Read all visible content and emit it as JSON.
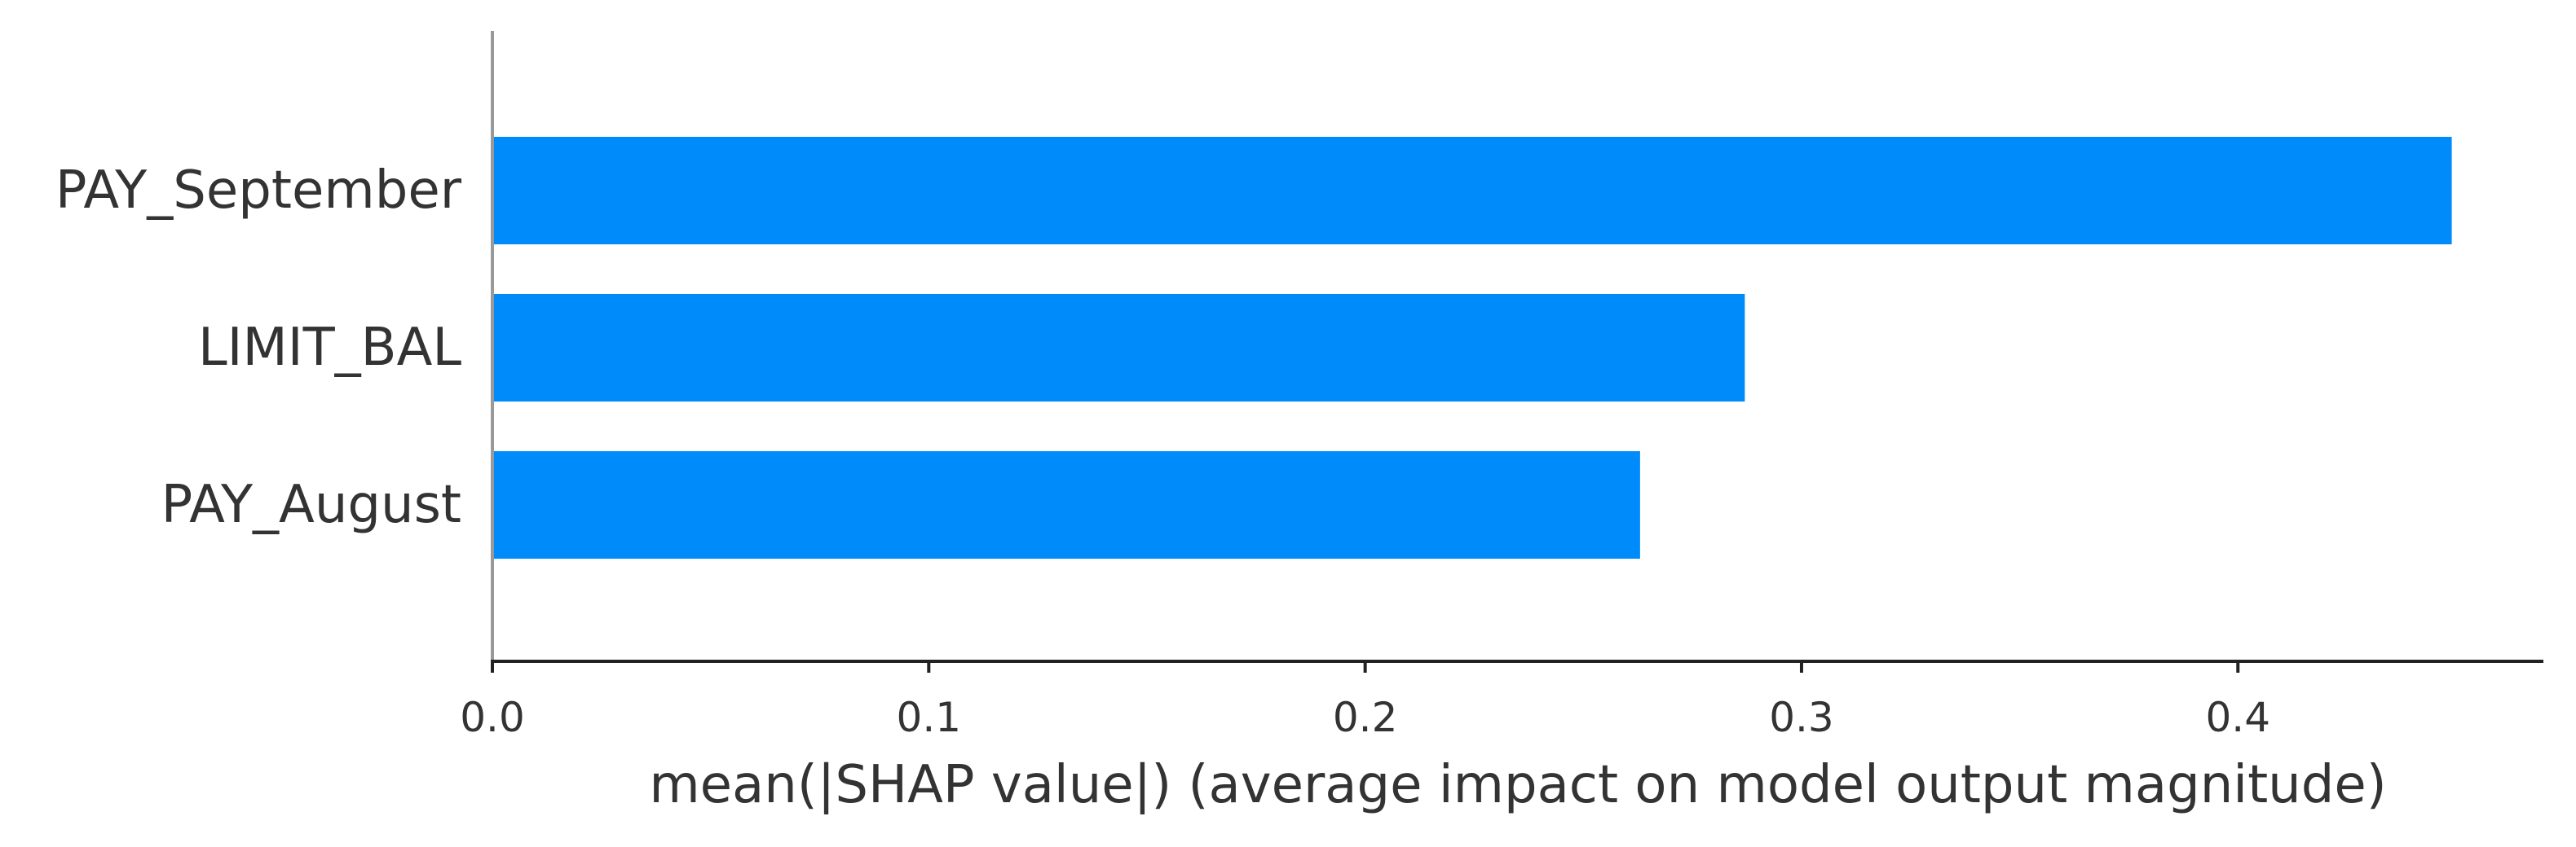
{
  "chart_data": {
    "type": "bar",
    "orientation": "horizontal",
    "categories": [
      "PAY_September",
      "LIMIT_BAL",
      "PAY_August"
    ],
    "values": [
      0.449,
      0.287,
      0.263
    ],
    "title": "",
    "xlabel": "mean(|SHAP value|) (average impact on model output magnitude)",
    "ylabel": "",
    "xlim": [
      0,
      0.47
    ],
    "xticks": [
      0.0,
      0.1,
      0.2,
      0.3,
      0.4
    ],
    "xtick_labels": [
      "0.0",
      "0.1",
      "0.2",
      "0.3",
      "0.4"
    ],
    "grid": false,
    "legend": "none",
    "colors": {
      "bar": "#008bfb",
      "axis": "#222222",
      "zero_line": "#999999",
      "text": "#333333"
    }
  }
}
